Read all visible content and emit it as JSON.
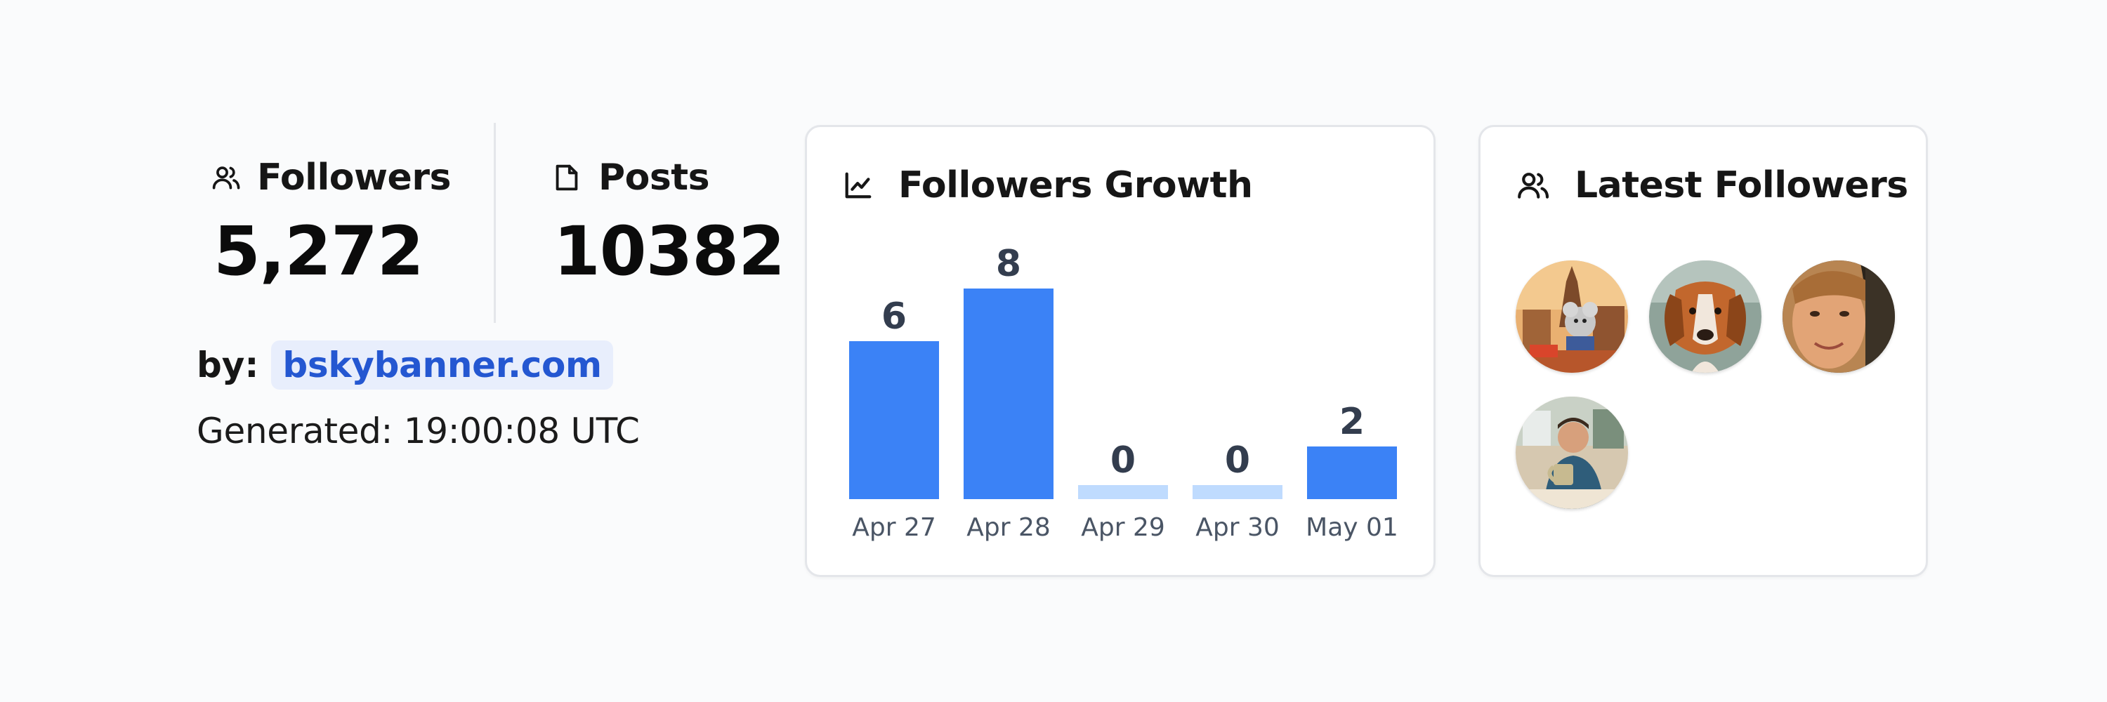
{
  "stats": {
    "followers": {
      "label": "Followers",
      "value": "5,272",
      "icon": "users-icon"
    },
    "posts": {
      "label": "Posts",
      "value": "10382",
      "icon": "file-icon"
    }
  },
  "credit": {
    "by_label": "by:",
    "link": "bskybanner.com"
  },
  "generated": "Generated: 19:00:08 UTC",
  "growth": {
    "title": "Followers Growth",
    "icon": "line-chart-icon"
  },
  "chart_data": {
    "type": "bar",
    "title": "Followers Growth",
    "categories": [
      "Apr 27",
      "Apr 28",
      "Apr 29",
      "Apr 30",
      "May 01"
    ],
    "values": [
      6,
      8,
      0,
      0,
      2
    ],
    "ylim": [
      0,
      8
    ],
    "grid": false,
    "colors": {
      "bar": "#3b82f6",
      "zero_bar": "#bfdbfe"
    }
  },
  "latest": {
    "title": "Latest Followers",
    "icon": "users-icon",
    "avatars": [
      {
        "name": "avatar-mouse-city"
      },
      {
        "name": "avatar-dog"
      },
      {
        "name": "avatar-woman"
      },
      {
        "name": "avatar-man-coffee"
      }
    ]
  }
}
